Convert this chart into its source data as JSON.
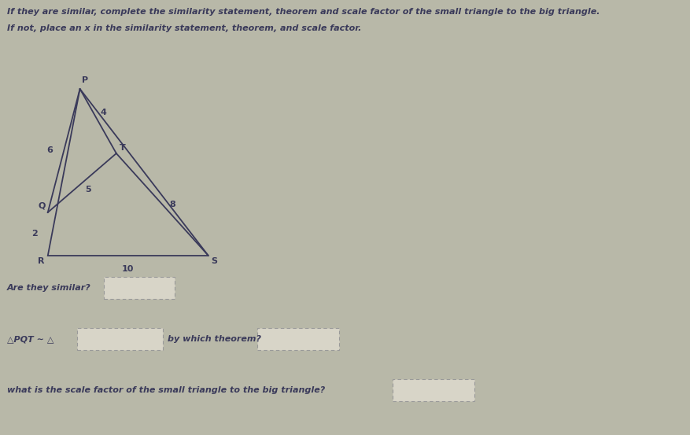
{
  "title_line1": "If they are similar, complete the similarity statement, theorem and scale factor of the small triangle to the big triangle.",
  "title_line2": "If not, place an x in the similarity statement, theorem, and scale factor.",
  "bg_color": "#b8b8a8",
  "text_color": "#3a3a5a",
  "triangle_color": "#3a3a5a",
  "label_P": "P",
  "label_Q": "Q",
  "label_R": "R",
  "label_S": "S",
  "label_T": "T",
  "side_PT": "4",
  "side_PQ": "6",
  "side_QT": "5",
  "side_TS": "8",
  "side_RS": "10",
  "side_QR": "2",
  "q1_label": "Are they similar?",
  "q2_label": "△PQT ∼ △",
  "q2_mid": "by which theorem?",
  "q3_label": "what is the scale factor of the small triangle to the big triangle?"
}
